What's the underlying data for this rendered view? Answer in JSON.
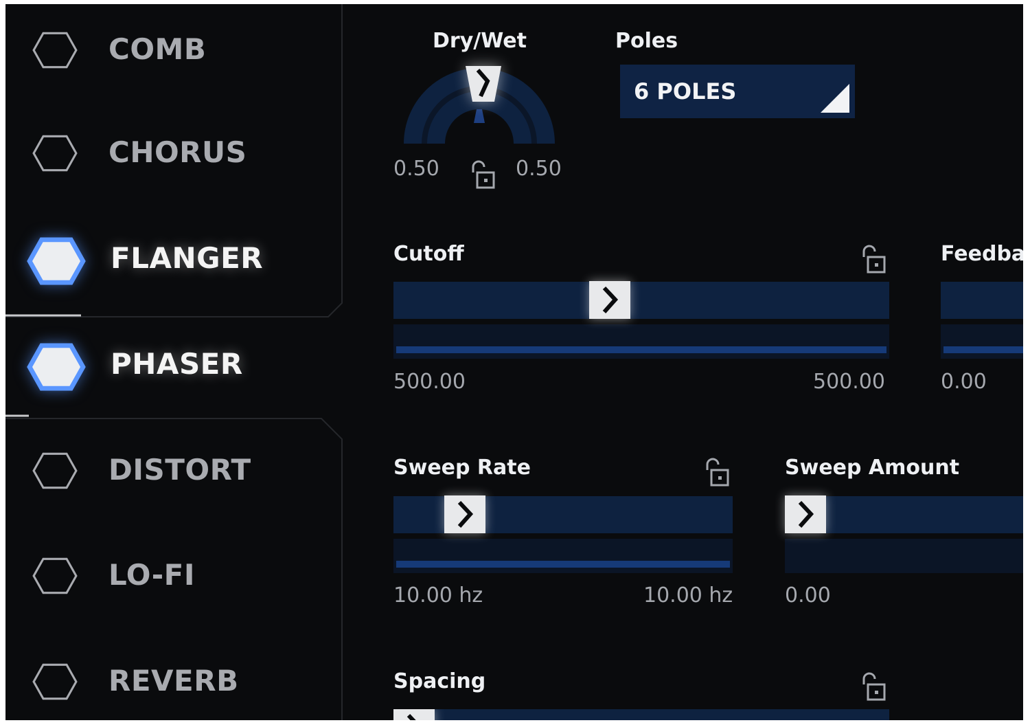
{
  "sidebar": {
    "items": [
      {
        "label": "COMB",
        "active": false
      },
      {
        "label": "CHORUS",
        "active": false
      },
      {
        "label": "FLANGER",
        "active": true
      },
      {
        "label": "PHASER",
        "active": true
      },
      {
        "label": "DISTORT",
        "active": false
      },
      {
        "label": "LO-FI",
        "active": false
      },
      {
        "label": "REVERB",
        "active": false
      }
    ]
  },
  "drywet": {
    "label": "Dry/Wet",
    "value": 0.5,
    "value_left": "0.50",
    "value_right": "0.50",
    "locked": false
  },
  "poles": {
    "label": "Poles",
    "selected": "6 POLES"
  },
  "cutoff": {
    "label": "Cutoff",
    "value_left": "500.00",
    "value_right": "500.00",
    "position": 0.43,
    "locked": false
  },
  "feedback": {
    "label": "Feedbac",
    "value_left": "0.00"
  },
  "sweep_rate": {
    "label": "Sweep Rate",
    "value_left": "10.00 hz",
    "value_right": "10.00 hz",
    "position": 0.17,
    "locked": false
  },
  "sweep_amount": {
    "label": "Sweep Amount",
    "value_left": "0.00",
    "position": 0.0
  },
  "spacing": {
    "label": "Spacing",
    "position": 0.0,
    "locked": false
  },
  "colors": {
    "background": "#0a0b0d",
    "track": "#0e2240",
    "accent_blue": "#163a78",
    "hex_active_glow": "#5a96ff",
    "text_active": "#f4f4f4",
    "text_inactive": "#a9abb0"
  },
  "icons": {
    "effect_toggle": "hexagon-icon",
    "lock": "unlock-icon",
    "slider_thumb": "chevron-right-icon",
    "dropdown": "triangle-corner-icon"
  }
}
